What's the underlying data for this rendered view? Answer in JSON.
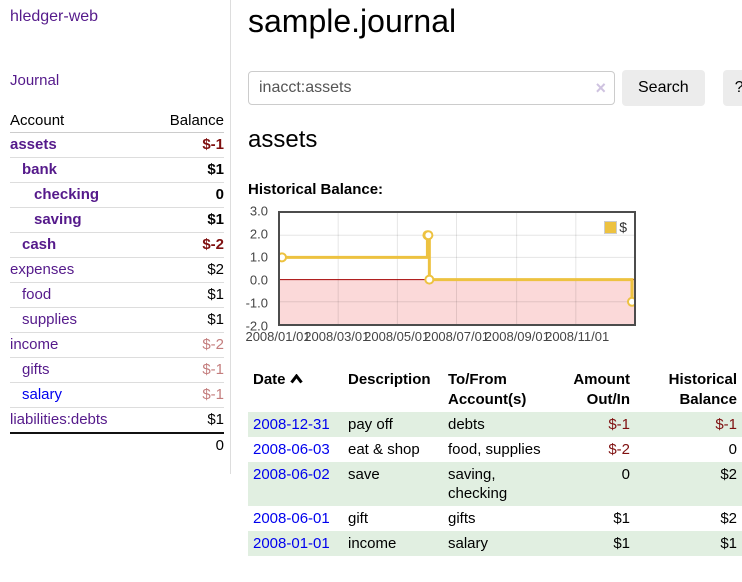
{
  "sidebar": {
    "brand": "hledger-web",
    "nav": {
      "journal": "Journal"
    },
    "accounts_table": {
      "col_account": "Account",
      "col_balance": "Balance",
      "rows": [
        {
          "name": "assets",
          "balance": "$-1"
        },
        {
          "name": "bank",
          "balance": "$1"
        },
        {
          "name": "checking",
          "balance": "0"
        },
        {
          "name": "saving",
          "balance": "$1"
        },
        {
          "name": "cash",
          "balance": "$-2"
        },
        {
          "name": "expenses",
          "balance": "$2"
        },
        {
          "name": "food",
          "balance": "$1"
        },
        {
          "name": "supplies",
          "balance": "$1"
        },
        {
          "name": "income",
          "balance": "$-2"
        },
        {
          "name": "gifts",
          "balance": "$-1"
        },
        {
          "name": "salary",
          "balance": "$-1"
        },
        {
          "name": "liabilities:debts",
          "balance": "$1"
        }
      ],
      "total": "0"
    }
  },
  "header": {
    "title": "sample.journal"
  },
  "search": {
    "value": "inacct:assets",
    "button": "Search",
    "help": "?"
  },
  "icons": {
    "clear": "×",
    "sort": "chevron-up"
  },
  "account_page": {
    "heading": "assets",
    "chart_label": "Historical Balance:"
  },
  "chart_data": {
    "type": "line",
    "title": "Historical Balance:",
    "step": true,
    "x_range": [
      "2008-01-01",
      "2008-12-31"
    ],
    "ylim": [
      -2,
      3
    ],
    "yticks": [
      {
        "label": "3.0",
        "value": 3
      },
      {
        "label": "2.0",
        "value": 2
      },
      {
        "label": "1.0",
        "value": 1
      },
      {
        "label": "0.0",
        "value": 0
      },
      {
        "label": "-1.0",
        "value": -1
      },
      {
        "label": "-2.0",
        "value": -2
      }
    ],
    "xticks": [
      {
        "label": "2008/01/01",
        "date": "2008-01-01"
      },
      {
        "label": "2008/03/01",
        "date": "2008-03-01"
      },
      {
        "label": "2008/05/01",
        "date": "2008-05-01"
      },
      {
        "label": "2008/07/01",
        "date": "2008-07-01"
      },
      {
        "label": "2008/09/01",
        "date": "2008-09-01"
      },
      {
        "label": "2008/11/01",
        "date": "2008-11-01"
      }
    ],
    "series": [
      {
        "name": "$",
        "color": "#edc240",
        "points": [
          {
            "date": "2008-01-01",
            "value": 1
          },
          {
            "date": "2008-06-01",
            "value": 2
          },
          {
            "date": "2008-06-02",
            "value": 2
          },
          {
            "date": "2008-06-03",
            "value": 0
          },
          {
            "date": "2008-12-31",
            "value": -1
          }
        ]
      }
    ],
    "colors": {
      "negative_fill": "#fbd9d9",
      "zero_line": "#a40000",
      "grid": "rgba(0,0,0,0.10)"
    },
    "legend_position": "top-right",
    "grid": true
  },
  "register": {
    "columns": {
      "date": "Date",
      "description": "Description",
      "accounts": "To/From Account(s)",
      "amount": "Amount Out/In",
      "balance": "Historical Balance"
    },
    "rows": [
      {
        "date": "2008-12-31",
        "description": "pay off",
        "accounts": "debts",
        "amount": "$-1",
        "balance": "$-1"
      },
      {
        "date": "2008-06-03",
        "description": "eat & shop",
        "accounts": "food, supplies",
        "amount": "$-2",
        "balance": "0"
      },
      {
        "date": "2008-06-02",
        "description": "save",
        "accounts": "saving, checking",
        "amount": "0",
        "balance": "$2"
      },
      {
        "date": "2008-06-01",
        "description": "gift",
        "accounts": "gifts",
        "amount": "$1",
        "balance": "$2"
      },
      {
        "date": "2008-01-01",
        "description": "income",
        "accounts": "salary",
        "amount": "$1",
        "balance": "$1"
      }
    ]
  }
}
